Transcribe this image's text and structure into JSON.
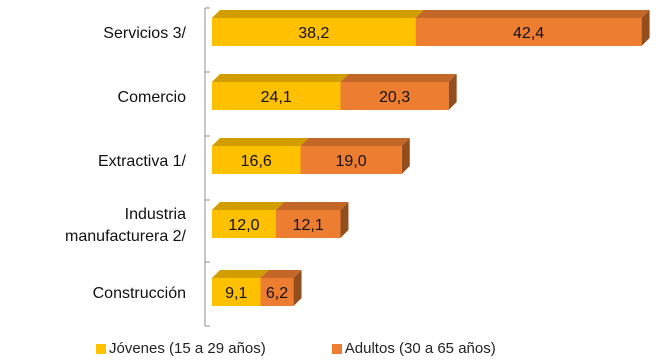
{
  "chart_data": {
    "type": "bar",
    "orientation": "horizontal",
    "stacked": true,
    "style": "3d",
    "title": "",
    "xlabel": "",
    "ylabel": "",
    "categories": [
      [
        "Servicios 3/"
      ],
      [
        "Comercio"
      ],
      [
        "Extractiva 1/"
      ],
      [
        "Industria",
        "manufacturera 2/"
      ],
      [
        "Construcción"
      ]
    ],
    "series": [
      {
        "name": "Jóvenes (15 a 29 años)",
        "color": "#FFC000",
        "values": [
          38.2,
          24.1,
          16.6,
          12.0,
          9.1
        ],
        "labels": [
          "38,2",
          "24,1",
          "16,6",
          "12,0",
          "9,1"
        ]
      },
      {
        "name": "Adultos (30 a 65 años)",
        "color": "#ED7D31",
        "values": [
          42.4,
          20.3,
          19.0,
          12.1,
          6.2
        ],
        "labels": [
          "42,4",
          "20,3",
          "19,0",
          "12,1",
          "6,2"
        ]
      }
    ],
    "xlim": [
      0,
      82
    ],
    "grid": false,
    "legend_position": "bottom"
  }
}
